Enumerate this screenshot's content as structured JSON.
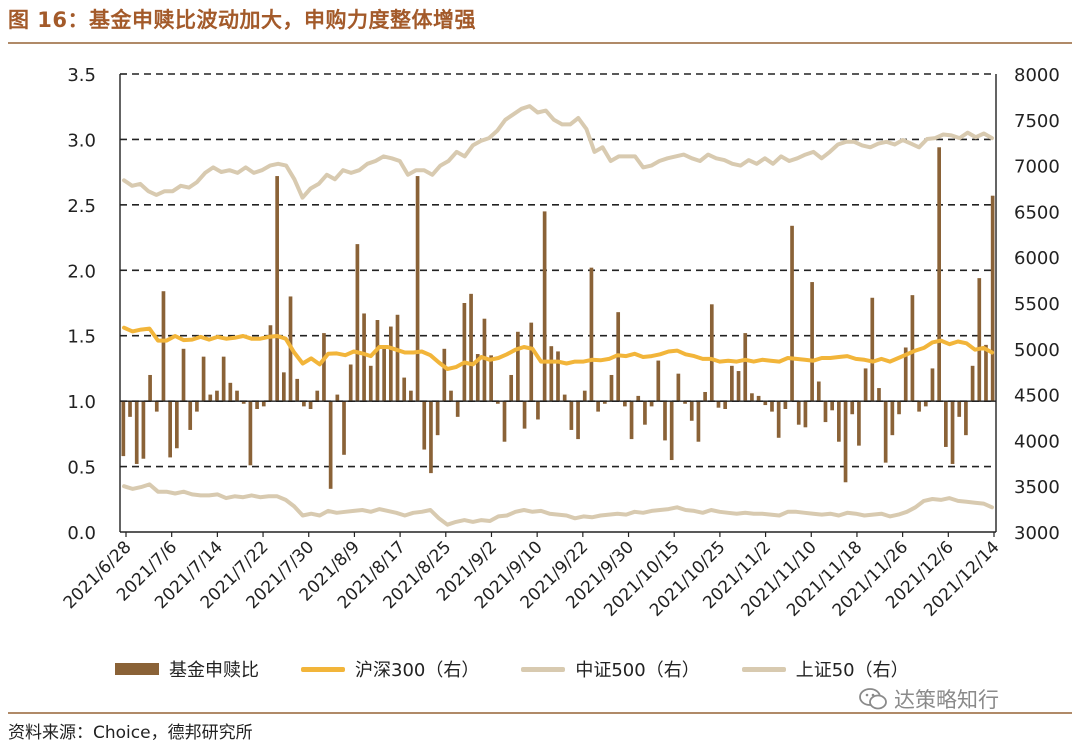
{
  "title": "图 16：基金申赎比波动加大，申购力度整体增强",
  "source": "资料来源：Choice，德邦研究所",
  "watermark": "达策略知行",
  "legend": [
    {
      "label": "基金申赎比",
      "kind": "bar",
      "color": "#8a6237"
    },
    {
      "label": "沪深300（右）",
      "kind": "line",
      "color": "#f2b53a"
    },
    {
      "label": "中证500（右）",
      "kind": "line",
      "color": "#d8cab0"
    },
    {
      "label": "上证50（右）",
      "kind": "line",
      "color": "#d8cab0"
    }
  ],
  "chart_data": {
    "type": "bar+line",
    "x_tick_labels": [
      "2021/6/28",
      "2021/7/6",
      "2021/7/14",
      "2021/7/22",
      "2021/7/30",
      "2021/8/9",
      "2021/8/17",
      "2021/8/25",
      "2021/9/2",
      "2021/9/10",
      "2021/9/22",
      "2021/9/30",
      "2021/10/15",
      "2021/10/25",
      "2021/11/2",
      "2021/11/10",
      "2021/11/18",
      "2021/11/26",
      "2021/12/6",
      "2021/12/14"
    ],
    "y_left": {
      "range": [
        0,
        3.5
      ],
      "ticks": [
        "0.0",
        "0.5",
        "1.0",
        "1.5",
        "2.0",
        "2.5",
        "3.0",
        "3.5"
      ],
      "baseline": 1.0
    },
    "y_right": {
      "range": [
        3000,
        8000
      ],
      "ticks": [
        "3000",
        "3500",
        "4000",
        "4500",
        "5000",
        "5500",
        "6000",
        "6500",
        "7000",
        "7500",
        "8000"
      ]
    },
    "grid": "horizontal dashed",
    "legend_position": "bottom",
    "series": [
      {
        "name": "基金申赎比",
        "type": "bar",
        "axis": "left",
        "values": [
          0.58,
          0.88,
          0.52,
          0.56,
          1.2,
          0.92,
          1.84,
          0.57,
          0.64,
          1.4,
          0.78,
          0.92,
          1.34,
          1.05,
          1.08,
          1.34,
          1.14,
          1.08,
          0.98,
          0.51,
          0.94,
          0.96,
          1.58,
          2.72,
          1.22,
          1.8,
          1.17,
          0.96,
          0.94,
          1.08,
          1.52,
          0.33,
          1.05,
          0.59,
          1.28,
          2.2,
          1.67,
          1.27,
          1.62,
          1.42,
          1.57,
          1.66,
          1.18,
          1.08,
          2.72,
          0.63,
          0.45,
          0.74,
          1.4,
          1.08,
          0.88,
          1.75,
          1.82,
          1.36,
          1.63,
          1.35,
          0.98,
          0.69,
          1.2,
          1.53,
          0.79,
          1.6,
          0.86,
          2.45,
          1.42,
          1.38,
          1.05,
          0.78,
          0.71,
          1.08,
          2.02,
          0.92,
          0.98,
          1.2,
          1.68,
          0.96,
          0.71,
          1.04,
          0.82,
          0.96,
          1.31,
          0.7,
          0.55,
          1.21,
          0.98,
          0.85,
          0.69,
          1.07,
          1.74,
          0.95,
          0.94,
          1.27,
          1.23,
          1.52,
          1.06,
          1.04,
          0.97,
          0.92,
          0.72,
          0.94,
          2.34,
          0.82,
          0.8,
          1.91,
          1.15,
          0.84,
          0.93,
          0.69,
          0.38,
          0.9,
          0.66,
          1.25,
          1.79,
          1.1,
          0.53,
          0.74,
          0.9,
          1.41,
          1.81,
          0.92,
          0.96,
          1.25,
          2.94,
          0.65,
          0.52,
          0.88,
          0.74,
          1.27,
          1.94,
          1.43,
          2.57
        ]
      },
      {
        "name": "沪深300（右）",
        "type": "line",
        "axis": "right",
        "values": [
          5230,
          5190,
          5210,
          5220,
          5090,
          5090,
          5140,
          5095,
          5100,
          5130,
          5100,
          5130,
          5110,
          5120,
          5140,
          5110,
          5110,
          5130,
          5140,
          5110,
          4960,
          4840,
          4895,
          4830,
          4945,
          4950,
          4930,
          4970,
          4950,
          4920,
          5020,
          5020,
          4990,
          4960,
          4960,
          4970,
          4930,
          4850,
          4780,
          4800,
          4850,
          4830,
          4910,
          4880,
          4900,
          4940,
          4990,
          5020,
          5000,
          4860,
          4860,
          4860,
          4840,
          4860,
          4860,
          4880,
          4875,
          4890,
          4930,
          4920,
          4945,
          4910,
          4920,
          4940,
          4970,
          4980,
          4940,
          4920,
          4890,
          4890,
          4860,
          4870,
          4860,
          4880,
          4860,
          4880,
          4870,
          4860,
          4900,
          4890,
          4880,
          4870,
          4900,
          4900,
          4910,
          4920,
          4890,
          4880,
          4860,
          4890,
          4860,
          4900,
          4940,
          4980,
          5010,
          5070,
          5090,
          5050,
          5080,
          5060,
          4990,
          5010,
          4960
        ]
      },
      {
        "name": "中证500（右）",
        "type": "line",
        "axis": "right",
        "values": [
          6840,
          6780,
          6800,
          6720,
          6680,
          6720,
          6720,
          6780,
          6760,
          6820,
          6920,
          6980,
          6930,
          6950,
          6920,
          6980,
          6920,
          6950,
          7000,
          7020,
          7000,
          6850,
          6650,
          6750,
          6800,
          6900,
          6850,
          6950,
          6920,
          6950,
          7020,
          7050,
          7100,
          7080,
          7050,
          6900,
          6950,
          6950,
          6900,
          7000,
          7050,
          7150,
          7100,
          7220,
          7270,
          7300,
          7380,
          7500,
          7560,
          7620,
          7650,
          7580,
          7600,
          7500,
          7450,
          7450,
          7520,
          7400,
          7150,
          7200,
          7050,
          7100,
          7100,
          7100,
          6980,
          7000,
          7050,
          7080,
          7100,
          7120,
          7080,
          7050,
          7120,
          7080,
          7060,
          7020,
          7000,
          7060,
          7020,
          7080,
          7020,
          7100,
          7050,
          7080,
          7120,
          7150,
          7080,
          7150,
          7230,
          7260,
          7260,
          7220,
          7200,
          7240,
          7260,
          7230,
          7280,
          7240,
          7200,
          7290,
          7300,
          7340,
          7330,
          7300,
          7360,
          7310,
          7350,
          7300
        ]
      },
      {
        "name": "上证50（右）",
        "type": "line",
        "axis": "right",
        "values": [
          3500,
          3470,
          3490,
          3520,
          3440,
          3440,
          3420,
          3440,
          3410,
          3400,
          3400,
          3410,
          3370,
          3390,
          3380,
          3400,
          3380,
          3390,
          3390,
          3350,
          3280,
          3180,
          3200,
          3180,
          3230,
          3210,
          3220,
          3230,
          3240,
          3220,
          3250,
          3230,
          3210,
          3180,
          3210,
          3220,
          3240,
          3150,
          3080,
          3110,
          3130,
          3110,
          3130,
          3120,
          3170,
          3180,
          3220,
          3240,
          3220,
          3230,
          3200,
          3190,
          3180,
          3150,
          3170,
          3160,
          3180,
          3190,
          3200,
          3190,
          3220,
          3210,
          3230,
          3240,
          3250,
          3270,
          3240,
          3230,
          3210,
          3240,
          3220,
          3210,
          3200,
          3210,
          3200,
          3200,
          3190,
          3180,
          3220,
          3220,
          3210,
          3200,
          3190,
          3200,
          3180,
          3210,
          3200,
          3180,
          3190,
          3200,
          3170,
          3190,
          3220,
          3270,
          3340,
          3360,
          3350,
          3370,
          3340,
          3330,
          3320,
          3310,
          3270
        ]
      }
    ]
  }
}
